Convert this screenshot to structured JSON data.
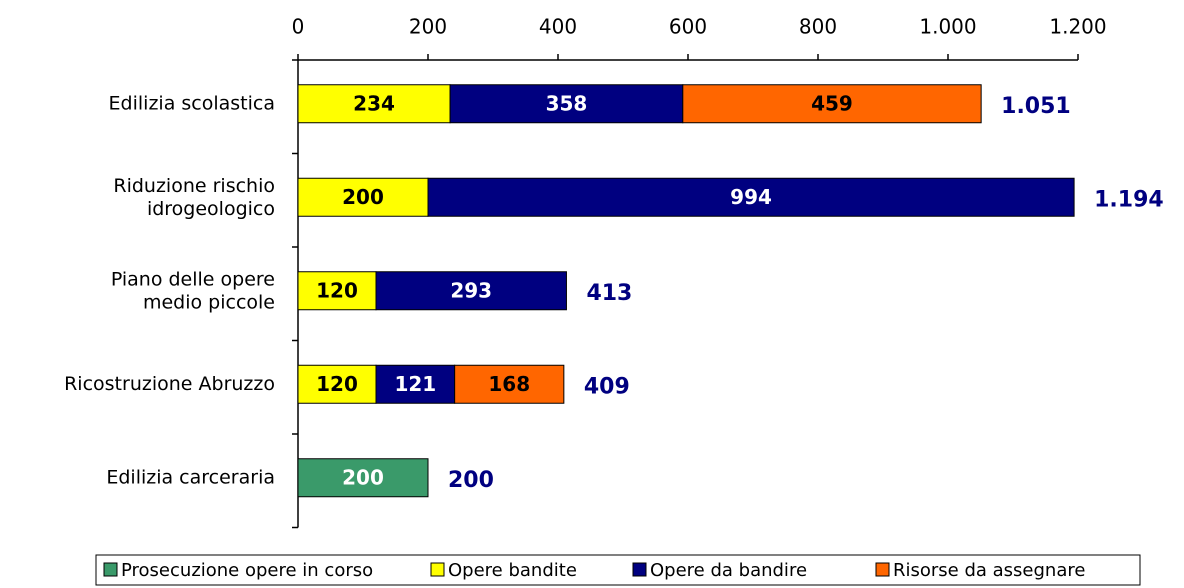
{
  "chart_data": {
    "type": "stacked-bar-horizontal",
    "categories": [
      "Edilizia scolastica",
      "Riduzione rischio\nidrogeologico",
      "Piano delle opere\nmedio piccole",
      "Ricostruzione Abruzzo",
      "Edilizia carceraria"
    ],
    "series": [
      {
        "name": "Prosecuzione opere in corso",
        "color": "#3a9a6a",
        "label_color": "#ffffff",
        "values": [
          null,
          null,
          null,
          null,
          200
        ]
      },
      {
        "name": "Opere bandite",
        "color": "#ffff00",
        "label_color": "#000000",
        "values": [
          234,
          200,
          120,
          120,
          null
        ]
      },
      {
        "name": "Opere da bandire",
        "color": "#000080",
        "label_color": "#ffffff",
        "values": [
          358,
          994,
          293,
          121,
          null
        ]
      },
      {
        "name": "Risorse da assegnare",
        "color": "#ff6600",
        "label_color": "#000000",
        "values": [
          459,
          null,
          null,
          168,
          null
        ]
      }
    ],
    "totals": {
      "color": "#000080",
      "values": [
        1051,
        1194,
        413,
        409,
        200
      ],
      "value_labels": [
        "1.051",
        "1.194",
        "413",
        "409",
        "200"
      ]
    },
    "xlim": [
      0,
      1200
    ],
    "xticks": [
      0,
      200,
      400,
      600,
      800,
      {
        "value": 1000,
        "label": "1.000"
      },
      {
        "value": 1200,
        "label": "1.200"
      }
    ],
    "legend": "bottom"
  }
}
